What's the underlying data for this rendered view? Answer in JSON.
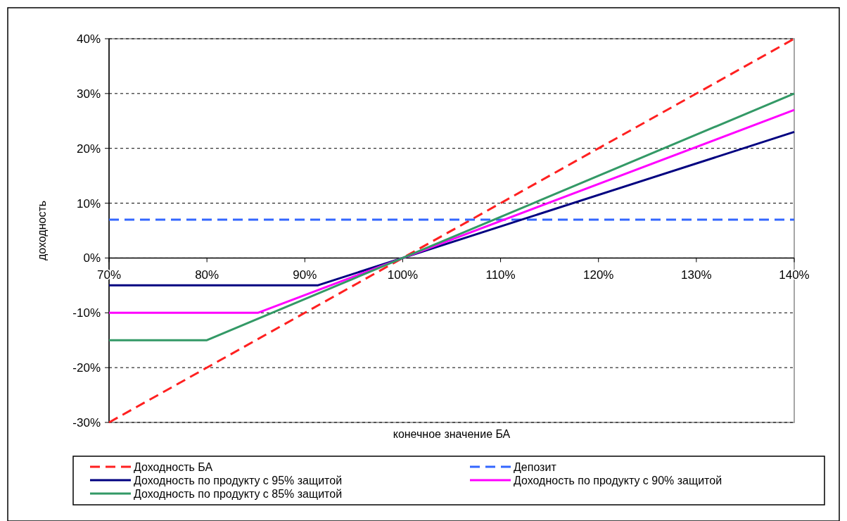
{
  "chart_data": {
    "type": "line",
    "xlabel": "конечное значение БА",
    "ylabel": "доходность",
    "xlim": [
      70,
      140
    ],
    "ylim": [
      -30,
      40
    ],
    "xticks": [
      {
        "value": 70,
        "label": "70%"
      },
      {
        "value": 80,
        "label": "80%"
      },
      {
        "value": 90,
        "label": "90%"
      },
      {
        "value": 100,
        "label": "100%"
      },
      {
        "value": 110,
        "label": "110%"
      },
      {
        "value": 120,
        "label": "120%"
      },
      {
        "value": 130,
        "label": "130%"
      },
      {
        "value": 140,
        "label": "140%"
      }
    ],
    "yticks": [
      {
        "value": -30,
        "label": "-30%"
      },
      {
        "value": -20,
        "label": "-20%"
      },
      {
        "value": -10,
        "label": "-10%"
      },
      {
        "value": 0,
        "label": "0%"
      },
      {
        "value": 10,
        "label": "10%"
      },
      {
        "value": 20,
        "label": "20%"
      },
      {
        "value": 30,
        "label": "30%"
      },
      {
        "value": 40,
        "label": "40%"
      }
    ],
    "grid": "y",
    "legend": "bottom",
    "marker": "none",
    "series": [
      {
        "name": "Доходность БА",
        "color": "#ff2020",
        "line_style": "dashed",
        "x": [
          70,
          140
        ],
        "values": [
          -30,
          40
        ]
      },
      {
        "name": "Депозит",
        "color": "#3366ff",
        "line_style": "dashed",
        "x": [
          70,
          140
        ],
        "values": [
          7,
          7
        ]
      },
      {
        "name": "Доходность по продукту с 95% защитой",
        "color": "#000080",
        "line_style": "solid",
        "x": [
          70,
          91.3,
          140
        ],
        "values": [
          -5,
          -5,
          23
        ]
      },
      {
        "name": "Доходность по продукту с 90% защитой",
        "color": "#ff00ff",
        "line_style": "solid",
        "x": [
          70,
          85.2,
          140
        ],
        "values": [
          -10,
          -10,
          27
        ]
      },
      {
        "name": "Доходность по продукту с 85% защитой",
        "color": "#339966",
        "line_style": "solid",
        "x": [
          70,
          80,
          140
        ],
        "values": [
          -15,
          -15,
          30
        ]
      }
    ]
  }
}
